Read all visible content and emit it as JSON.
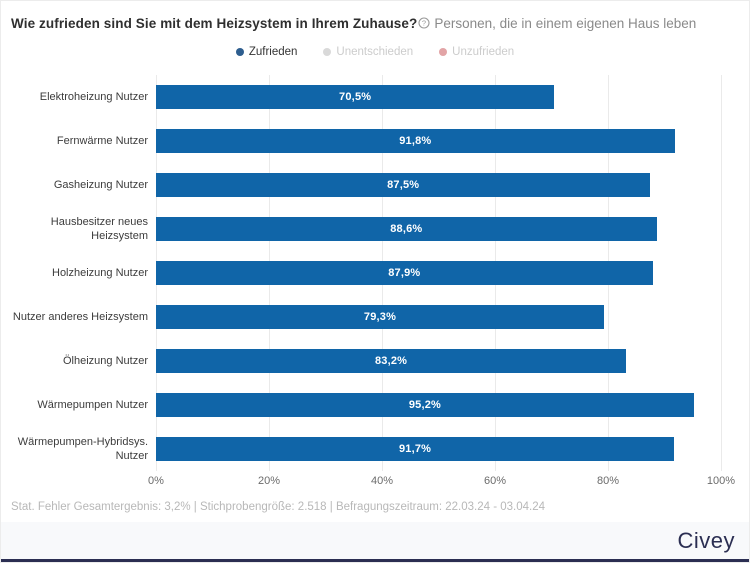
{
  "header": {
    "title": "Wie zufrieden sind Sie mit dem Heizsystem in Ihrem Zuhause?",
    "subtitle": "Personen, die in einem eigenen Haus leben",
    "info_icon": "circle-info-icon"
  },
  "legend": {
    "items": [
      {
        "label": "Zufrieden",
        "dot_color": "#2e5e8f",
        "text_color": "#333333",
        "active": true
      },
      {
        "label": "Unentschieden",
        "dot_color": "#d9d9d9",
        "text_color": "#cccccc",
        "active": false
      },
      {
        "label": "Unzufrieden",
        "dot_color": "#e2a4a6",
        "text_color": "#cccccc",
        "active": false
      }
    ]
  },
  "chart_data": {
    "type": "bar",
    "orientation": "horizontal",
    "title": "Wie zufrieden sind Sie mit dem Heizsystem in Ihrem Zuhause?",
    "subtitle": "Personen, die in einem eigenen Haus leben",
    "series_name": "Zufrieden",
    "categories": [
      "Elektroheizung Nutzer",
      "Fernwärme Nutzer",
      "Gasheizung Nutzer",
      "Hausbesitzer neues Heizsystem",
      "Holzheizung Nutzer",
      "Nutzer anderes Heizsystem",
      "Ölheizung Nutzer",
      "Wärmepumpen Nutzer",
      "Wärmepumpen-Hybridsys. Nutzer"
    ],
    "values": [
      70.5,
      91.8,
      87.5,
      88.6,
      87.9,
      79.3,
      83.2,
      95.2,
      91.7
    ],
    "value_labels": [
      "70,5%",
      "91,8%",
      "87,5%",
      "88,6%",
      "87,9%",
      "79,3%",
      "83,2%",
      "95,2%",
      "91,7%"
    ],
    "bar_color": "#1065a8",
    "xlim": [
      0,
      100
    ],
    "x_ticks": [
      0,
      20,
      40,
      60,
      80,
      100
    ],
    "x_tick_labels": [
      "0%",
      "20%",
      "40%",
      "60%",
      "80%",
      "100%"
    ],
    "grid": "vertical",
    "legend_position": "top-center"
  },
  "footer": {
    "stats": "Stat. Fehler Gesamtergebnis: 3,2% | Stichprobengröße: 2.518 | Befragungszeitraum: 22.03.24 - 03.04.24",
    "brand": "Civey"
  }
}
